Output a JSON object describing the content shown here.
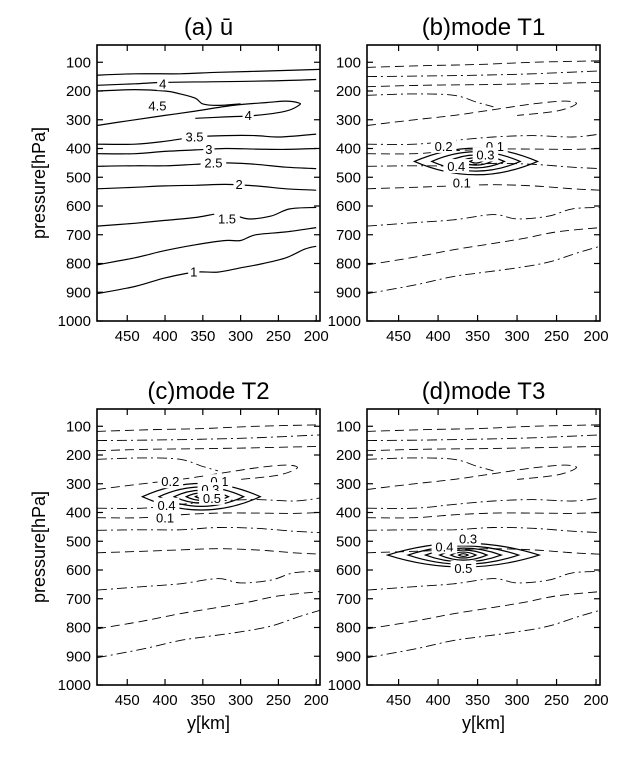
{
  "chart_data": [
    {
      "type": "contour",
      "panel": "a",
      "title": "(a) ū",
      "xlabel": "",
      "ylabel": "pressure[hPa]",
      "xlim": [
        490,
        195
      ],
      "ylim": [
        1000,
        40
      ],
      "xticks": [
        450,
        400,
        350,
        300,
        250,
        200
      ],
      "yticks": [
        100,
        200,
        300,
        400,
        500,
        600,
        700,
        800,
        900,
        1000
      ],
      "line_style": "solid",
      "contours": [
        {
          "level": "4.5",
          "points": [
            [
              490,
              145
            ],
            [
              440,
              140
            ],
            [
              380,
              140
            ],
            [
              330,
              135
            ],
            [
              260,
              130
            ],
            [
              195,
              125
            ]
          ]
        },
        {
          "level": "4",
          "points": [
            [
              490,
              180
            ],
            [
              440,
              175
            ],
            [
              400,
              170
            ],
            [
              340,
              168
            ],
            [
              260,
              165
            ],
            [
              200,
              160
            ]
          ]
        },
        {
          "level": "4.5",
          "points": [
            [
              490,
              200
            ],
            [
              440,
              195
            ],
            [
              400,
              200
            ],
            [
              380,
              210
            ],
            [
              360,
              225
            ],
            [
              350,
              245
            ],
            [
              330,
              250
            ],
            [
              300,
              245
            ]
          ]
        },
        {
          "level": "4",
          "points": [
            [
              490,
              320
            ],
            [
              440,
              300
            ],
            [
              400,
              285
            ],
            [
              360,
              270
            ],
            [
              310,
              250
            ],
            [
              265,
              240
            ],
            [
              240,
              235
            ],
            [
              225,
              240
            ],
            [
              222,
              248
            ],
            [
              240,
              270
            ],
            [
              280,
              285
            ],
            [
              320,
              290
            ],
            [
              360,
              295
            ]
          ]
        },
        {
          "level": "3.5",
          "points": [
            [
              490,
              385
            ],
            [
              440,
              385
            ],
            [
              400,
              375
            ],
            [
              360,
              360
            ],
            [
              320,
              355
            ],
            [
              280,
              355
            ],
            [
              250,
              360
            ],
            [
              200,
              350
            ]
          ]
        },
        {
          "level": "3",
          "points": [
            [
              490,
              418
            ],
            [
              440,
              418
            ],
            [
              400,
              410
            ],
            [
              360,
              405
            ],
            [
              320,
              400
            ],
            [
              280,
              402
            ],
            [
              240,
              403
            ],
            [
              200,
              400
            ]
          ]
        },
        {
          "level": "2.5",
          "points": [
            [
              490,
              462
            ],
            [
              440,
              460
            ],
            [
              400,
              460
            ],
            [
              360,
              455
            ],
            [
              320,
              450
            ],
            [
              280,
              455
            ],
            [
              240,
              465
            ],
            [
              200,
              470
            ]
          ]
        },
        {
          "level": "2",
          "points": [
            [
              490,
              540
            ],
            [
              440,
              535
            ],
            [
              400,
              530
            ],
            [
              360,
              528
            ],
            [
              320,
              525
            ],
            [
              280,
              530
            ],
            [
              240,
              540
            ],
            [
              200,
              545
            ]
          ]
        },
        {
          "level": "1.5",
          "points": [
            [
              490,
              670
            ],
            [
              440,
              660
            ],
            [
              400,
              650
            ],
            [
              360,
              640
            ],
            [
              320,
              625
            ],
            [
              290,
              645
            ],
            [
              260,
              635
            ],
            [
              235,
              610
            ],
            [
              200,
              605
            ]
          ]
        },
        {
          "level": "1",
          "points": [
            [
              490,
              805
            ],
            [
              440,
              780
            ],
            [
              400,
              755
            ],
            [
              360,
              735
            ],
            [
              320,
              720
            ],
            [
              300,
              720
            ],
            [
              280,
              700
            ],
            [
              240,
              690
            ],
            [
              200,
              675
            ]
          ]
        },
        {
          "level": "",
          "points": [
            [
              490,
              905
            ],
            [
              440,
              880
            ],
            [
              400,
              850
            ],
            [
              360,
              830
            ],
            [
              330,
              830
            ],
            [
              300,
              815
            ],
            [
              270,
              800
            ],
            [
              240,
              780
            ],
            [
              215,
              750
            ],
            [
              200,
              740
            ]
          ]
        }
      ],
      "contour_labels": [
        {
          "text": "4",
          "x": 403,
          "y": 180
        },
        {
          "text": "4.5",
          "x": 410,
          "y": 258
        },
        {
          "text": "4",
          "x": 290,
          "y": 290
        },
        {
          "text": "3.5",
          "x": 361,
          "y": 365
        },
        {
          "text": "3",
          "x": 342,
          "y": 408
        },
        {
          "text": "2.5",
          "x": 336,
          "y": 455
        },
        {
          "text": "2",
          "x": 302,
          "y": 530
        },
        {
          "text": "1.5",
          "x": 318,
          "y": 650
        },
        {
          "text": "1",
          "x": 362,
          "y": 835
        }
      ]
    },
    {
      "type": "contour",
      "panel": "b",
      "title": "(b)mode T1",
      "xlabel": "",
      "ylabel": "",
      "xlim": [
        490,
        195
      ],
      "ylim": [
        1000,
        40
      ],
      "xticks": [
        450,
        400,
        350,
        300,
        250,
        200
      ],
      "yticks": [
        100,
        200,
        300,
        400,
        500,
        600,
        700,
        800,
        900,
        1000
      ],
      "center": [
        352,
        445
      ],
      "rings": [
        {
          "level": "0.1",
          "rx": 78,
          "ry": 58
        },
        {
          "level": "0.2",
          "rx": 56,
          "ry": 42
        },
        {
          "level": "0.3",
          "rx": 36,
          "ry": 28
        },
        {
          "level": "0.4",
          "rx": 20,
          "ry": 16
        },
        {
          "level": "",
          "rx": 8,
          "ry": 7
        }
      ],
      "ring_labels": [
        {
          "text": "0.2",
          "x": 393,
          "y": 398
        },
        {
          "text": "0.1",
          "x": 328,
          "y": 398
        },
        {
          "text": "0.3",
          "x": 340,
          "y": 428
        },
        {
          "text": "0.4",
          "x": 377,
          "y": 468
        },
        {
          "text": "0.1",
          "x": 370,
          "y": 525
        }
      ]
    },
    {
      "type": "contour",
      "panel": "c",
      "title": "(c)mode T2",
      "xlabel": "y[km]",
      "ylabel": "pressure[hPa]",
      "xlim": [
        490,
        195
      ],
      "ylim": [
        1000,
        40
      ],
      "xticks": [
        450,
        400,
        350,
        300,
        250,
        200
      ],
      "yticks": [
        100,
        200,
        300,
        400,
        500,
        600,
        700,
        800,
        900,
        1000
      ],
      "center": [
        352,
        345
      ],
      "rings": [
        {
          "level": "0.1",
          "rx": 78,
          "ry": 58
        },
        {
          "level": "0.2",
          "rx": 56,
          "ry": 42
        },
        {
          "level": "0.3",
          "rx": 36,
          "ry": 28
        },
        {
          "level": "0.4",
          "rx": 20,
          "ry": 16
        },
        {
          "level": "0.5",
          "rx": 8,
          "ry": 7
        }
      ],
      "ring_labels": [
        {
          "text": "0.2",
          "x": 393,
          "y": 298
        },
        {
          "text": "0.1",
          "x": 328,
          "y": 298
        },
        {
          "text": "0.3",
          "x": 340,
          "y": 326
        },
        {
          "text": "0.5",
          "x": 338,
          "y": 356
        },
        {
          "text": "0.4",
          "x": 398,
          "y": 380
        },
        {
          "text": "0.1",
          "x": 400,
          "y": 425
        }
      ]
    },
    {
      "type": "contour",
      "panel": "d",
      "title": "(d)mode T3",
      "xlabel": "y[km]",
      "ylabel": "",
      "xlim": [
        490,
        195
      ],
      "ylim": [
        1000,
        40
      ],
      "xticks": [
        450,
        400,
        350,
        300,
        250,
        200
      ],
      "yticks": [
        100,
        200,
        300,
        400,
        500,
        600,
        700,
        800,
        900,
        1000
      ],
      "center": [
        368,
        548
      ],
      "rings": [
        {
          "level": "",
          "rx": 96,
          "ry": 52
        },
        {
          "level": "",
          "rx": 70,
          "ry": 40
        },
        {
          "level": "0.3",
          "rx": 48,
          "ry": 30
        },
        {
          "level": "",
          "rx": 30,
          "ry": 22
        },
        {
          "level": "0.4",
          "rx": 16,
          "ry": 13
        },
        {
          "level": "0.5",
          "rx": 6,
          "ry": 6
        }
      ],
      "ring_labels": [
        {
          "text": "0.3",
          "x": 362,
          "y": 498
        },
        {
          "text": "0.4",
          "x": 392,
          "y": 525
        },
        {
          "text": "0.5",
          "x": 368,
          "y": 600
        }
      ]
    }
  ],
  "background_pattern": [
    [
      [
        490,
        118
      ],
      [
        420,
        112
      ],
      [
        350,
        108
      ],
      [
        280,
        100
      ],
      [
        195,
        95
      ]
    ],
    [
      [
        490,
        150
      ],
      [
        420,
        148
      ],
      [
        350,
        145
      ],
      [
        280,
        140
      ],
      [
        195,
        130
      ]
    ],
    [
      [
        490,
        185
      ],
      [
        420,
        180
      ],
      [
        350,
        178
      ],
      [
        280,
        175
      ],
      [
        195,
        170
      ]
    ],
    [
      [
        490,
        215
      ],
      [
        430,
        210
      ],
      [
        380,
        215
      ],
      [
        350,
        240
      ],
      [
        330,
        255
      ]
    ],
    [
      [
        490,
        320
      ],
      [
        430,
        300
      ],
      [
        380,
        285
      ],
      [
        330,
        265
      ],
      [
        280,
        245
      ],
      [
        240,
        235
      ],
      [
        225,
        245
      ],
      [
        250,
        270
      ],
      [
        300,
        285
      ]
    ],
    [
      [
        490,
        385
      ],
      [
        430,
        385
      ],
      [
        380,
        372
      ],
      [
        330,
        360
      ],
      [
        280,
        355
      ],
      [
        230,
        360
      ],
      [
        195,
        350
      ]
    ],
    [
      [
        490,
        418
      ],
      [
        430,
        418
      ],
      [
        380,
        408
      ],
      [
        330,
        402
      ],
      [
        280,
        402
      ],
      [
        230,
        403
      ],
      [
        195,
        400
      ]
    ],
    [
      [
        490,
        462
      ],
      [
        430,
        460
      ],
      [
        380,
        460
      ],
      [
        330,
        452
      ],
      [
        280,
        455
      ],
      [
        230,
        465
      ],
      [
        195,
        470
      ]
    ],
    [
      [
        490,
        540
      ],
      [
        430,
        535
      ],
      [
        380,
        530
      ],
      [
        330,
        526
      ],
      [
        280,
        530
      ],
      [
        230,
        540
      ],
      [
        195,
        545
      ]
    ],
    [
      [
        490,
        670
      ],
      [
        430,
        658
      ],
      [
        380,
        648
      ],
      [
        330,
        630
      ],
      [
        300,
        645
      ],
      [
        260,
        635
      ],
      [
        230,
        610
      ],
      [
        195,
        605
      ]
    ],
    [
      [
        490,
        805
      ],
      [
        430,
        778
      ],
      [
        380,
        752
      ],
      [
        330,
        730
      ],
      [
        290,
        712
      ],
      [
        250,
        690
      ],
      [
        195,
        675
      ]
    ],
    [
      [
        490,
        905
      ],
      [
        430,
        875
      ],
      [
        380,
        845
      ],
      [
        340,
        830
      ],
      [
        300,
        815
      ],
      [
        260,
        795
      ],
      [
        220,
        760
      ],
      [
        195,
        740
      ]
    ]
  ]
}
